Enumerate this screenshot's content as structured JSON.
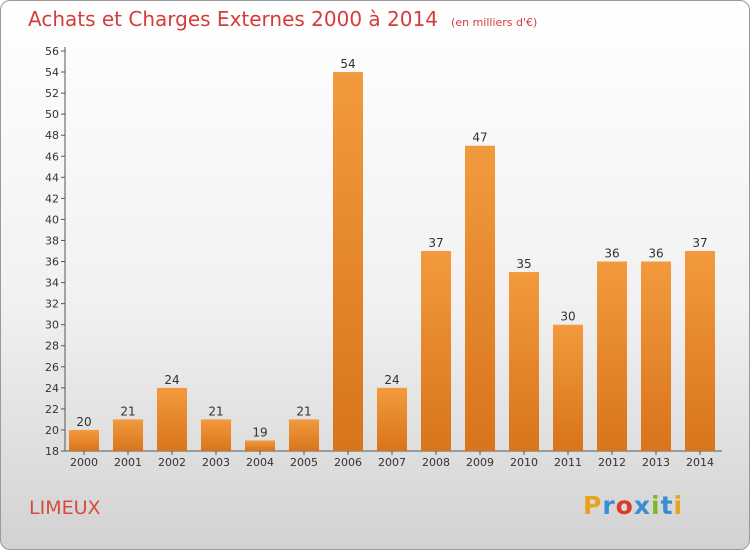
{
  "chart_data": {
    "type": "bar",
    "title": "Achats et Charges Externes 2000 à 2014",
    "unit_label": "(en milliers d'€)",
    "categories": [
      "2000",
      "2001",
      "2002",
      "2003",
      "2004",
      "2005",
      "2006",
      "2007",
      "2008",
      "2009",
      "2010",
      "2011",
      "2012",
      "2013",
      "2014"
    ],
    "values": [
      20,
      21,
      24,
      21,
      19,
      21,
      54,
      24,
      37,
      47,
      35,
      30,
      36,
      36,
      37
    ],
    "ylim": [
      18,
      56
    ],
    "ytick_step": 2,
    "grid": false,
    "bar_color": "#f39a3e",
    "bar_color_dark": "#d8741c",
    "xlabel": "",
    "ylabel": ""
  },
  "footer": {
    "place": "LIMEUX",
    "logo": "Proxiti",
    "logo_colors": [
      "#e9a21b",
      "#3a8fd4",
      "#d93a2b",
      "#3a8fd4",
      "#7db92e",
      "#3a8fd4",
      "#e9a21b"
    ]
  }
}
